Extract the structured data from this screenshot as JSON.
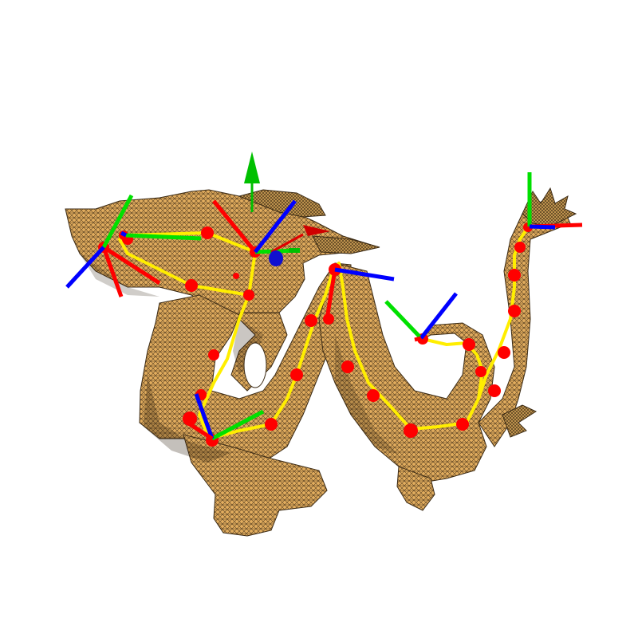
{
  "viewer": {
    "background": "#ffffff",
    "mesh_fill": "#e2ad5e",
    "mesh_wire": "#3b2a14",
    "skeleton_color": "#ffee00",
    "joint_color": "#ff0000",
    "axis_colors": {
      "x": "#ff0000",
      "y": "#00e000",
      "z": "#0000ff"
    },
    "world_axes_icon": "xyz-axes-gizmo",
    "frame_icon": "coordinate-frame",
    "joint_count": 30,
    "frame_count": 8
  }
}
